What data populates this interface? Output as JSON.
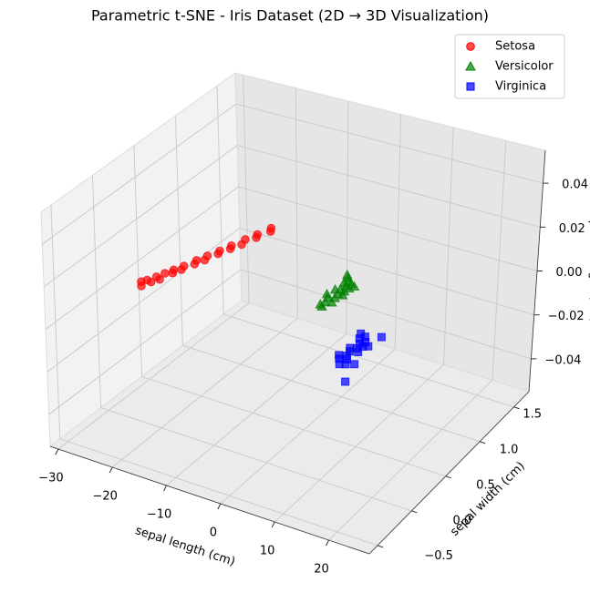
{
  "chart_data": {
    "type": "scatter3d",
    "title": "Parametric t-SNE - Iris Dataset (2D → 3D Visualization)",
    "x_label": "sepal length (cm)",
    "y_label": "sepal width (cm)",
    "z_label": "petal length (cm)",
    "xlim": [
      -31.5,
      27.5
    ],
    "ylim": [
      -0.62,
      1.72
    ],
    "zlim": [
      -0.055,
      0.055
    ],
    "xticks": [
      {
        "value": -30,
        "label": "−30"
      },
      {
        "value": -20,
        "label": "−20"
      },
      {
        "value": -10,
        "label": "−10"
      },
      0,
      10,
      20
    ],
    "yticks": [
      {
        "value": -0.5,
        "label": "−0.5"
      },
      {
        "value": 0,
        "label": "0.0"
      },
      0.5,
      {
        "value": 1,
        "label": "1.0"
      },
      1.5
    ],
    "zticks": [
      {
        "value": -0.04,
        "label": "−0.04"
      },
      {
        "value": -0.02,
        "label": "−0.02"
      },
      {
        "value": 0,
        "label": "0.00"
      },
      0.02,
      0.04
    ],
    "grid": true,
    "legend_position": "upper right",
    "series": [
      {
        "name": "Setosa",
        "color": "#ff0000",
        "marker": "circle",
        "x": [
          -27.3,
          -26.8,
          -26.5,
          -26.1,
          -25.9,
          -25.6,
          -25.2,
          -25.0,
          -24.6,
          -24.3,
          -24.0,
          -23.6,
          -23.2,
          -22.9,
          -22.5,
          -22.1,
          -21.8,
          -21.4,
          -21.0,
          -20.6,
          -20.2,
          -19.8,
          -19.4,
          -19.0,
          -18.5
        ],
        "y": [
          0.27,
          0.31,
          0.22,
          0.38,
          0.3,
          0.45,
          0.36,
          0.52,
          0.48,
          0.6,
          0.55,
          0.71,
          0.66,
          0.8,
          0.74,
          0.9,
          0.86,
          1.0,
          0.96,
          1.12,
          1.05,
          1.22,
          1.18,
          1.34,
          1.3
        ],
        "z": [
          0,
          0,
          0,
          0,
          0,
          0,
          0,
          0,
          0,
          0,
          0,
          0,
          0,
          0,
          0,
          0,
          0,
          0,
          0,
          0,
          0,
          0,
          0,
          0,
          0
        ]
      },
      {
        "name": "Versicolor",
        "color": "#008000",
        "marker": "triangle",
        "x": [
          0.2,
          0.8,
          1.1,
          1.5,
          1.9,
          2.3,
          2.8,
          3.2,
          1.0,
          1.7,
          2.1,
          2.6,
          0.6,
          1.3,
          2.4,
          3.0,
          1.8,
          2.0,
          1.4,
          2.7
        ],
        "y": [
          1.05,
          1.02,
          0.95,
          0.98,
          0.92,
          0.96,
          0.9,
          0.94,
          0.84,
          0.86,
          0.8,
          0.85,
          0.76,
          0.72,
          0.74,
          0.8,
          0.66,
          0.6,
          0.62,
          0.68
        ],
        "z": [
          0,
          0,
          0,
          0,
          0,
          0,
          0,
          0,
          0,
          0,
          0,
          0,
          0,
          0,
          0,
          0,
          0,
          0,
          0,
          0
        ]
      },
      {
        "name": "Virginica",
        "color": "#0000ff",
        "marker": "square",
        "x": [
          12.0,
          12.6,
          13.1,
          13.5,
          14.0,
          14.4,
          12.8,
          13.3,
          13.8,
          14.6,
          15.1,
          12.4,
          13.0,
          13.6,
          14.2,
          15.5,
          13.9,
          14.8,
          16.0,
          17.5
        ],
        "y": [
          0.42,
          0.36,
          0.4,
          0.3,
          0.34,
          0.28,
          0.22,
          0.18,
          0.24,
          0.2,
          0.3,
          0.1,
          0.06,
          0.12,
          0.08,
          0.45,
          0.0,
          0.02,
          0.05,
          -0.18
        ],
        "z": [
          0,
          0,
          0,
          0,
          0,
          0,
          0,
          0,
          0,
          0,
          0,
          0,
          0,
          0,
          0,
          0,
          0,
          0,
          0,
          0
        ]
      }
    ]
  }
}
